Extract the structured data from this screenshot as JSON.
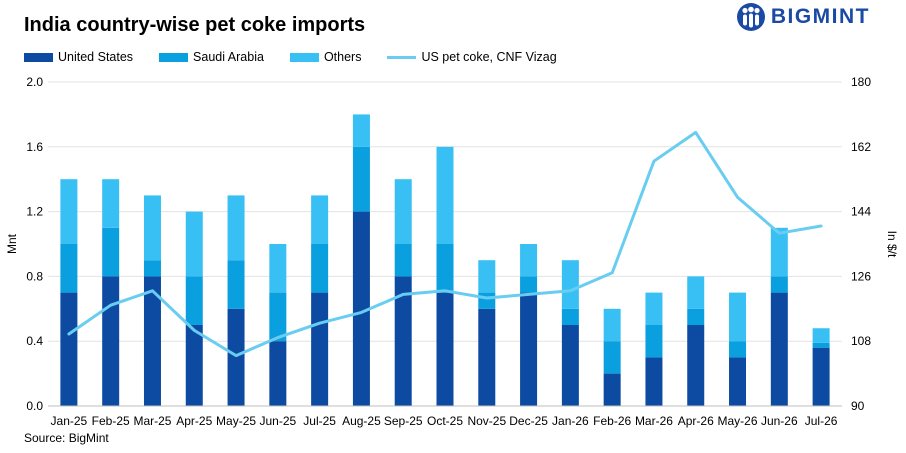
{
  "title": "India country-wise pet coke imports",
  "brand": {
    "name": "BIGMINT",
    "logo_icon": "bigmint-people-icon",
    "color": "#1b4aa5"
  },
  "source": "Source: BigMint",
  "chart_data": {
    "type": "bar",
    "stacked": true,
    "categories": [
      "Jan-25",
      "Feb-25",
      "Mar-25",
      "Apr-25",
      "May-25",
      "Jun-25",
      "Jul-25",
      "Aug-25",
      "Sep-25",
      "Oct-25",
      "Nov-25",
      "Dec-25",
      "Jan-26",
      "Feb-26",
      "Mar-26",
      "Apr-26",
      "May-26",
      "Jun-26",
      "Jul-26"
    ],
    "series": [
      {
        "name": "United States",
        "color": "#0d4aa1",
        "values": [
          0.7,
          0.8,
          0.8,
          0.5,
          0.6,
          0.4,
          0.7,
          1.2,
          0.8,
          0.7,
          0.6,
          0.7,
          0.5,
          0.2,
          0.3,
          0.5,
          0.3,
          0.7,
          0.36
        ]
      },
      {
        "name": "Saudi Arabia",
        "color": "#0a9fdf",
        "values": [
          0.3,
          0.3,
          0.1,
          0.3,
          0.3,
          0.3,
          0.3,
          0.4,
          0.2,
          0.3,
          0.1,
          0.1,
          0.1,
          0.2,
          0.2,
          0.1,
          0.1,
          0.1,
          0.03
        ]
      },
      {
        "name": "Others",
        "color": "#38c0f4",
        "values": [
          0.4,
          0.3,
          0.4,
          0.4,
          0.4,
          0.3,
          0.3,
          0.2,
          0.4,
          0.6,
          0.2,
          0.2,
          0.3,
          0.2,
          0.2,
          0.2,
          0.3,
          0.3,
          0.09
        ]
      }
    ],
    "line": {
      "name": "US pet coke, CNF Vizag",
      "color": "#69cdf2",
      "axis": "right",
      "values": [
        110,
        118,
        122,
        111,
        104,
        109,
        113,
        116,
        121,
        122,
        120,
        121,
        122,
        127,
        158,
        166,
        148,
        138,
        140
      ]
    },
    "ylabel": "Mnt",
    "y2label": "In $/t",
    "ylim": [
      0,
      2.0
    ],
    "y2lim": [
      90,
      180
    ],
    "yticks": [
      "0.0",
      "0.4",
      "0.8",
      "1.2",
      "1.6",
      "2.0"
    ],
    "y2ticks": [
      "90",
      "108",
      "126",
      "144",
      "162",
      "180"
    ],
    "legend_position": "top-left",
    "grid": "horizontal"
  }
}
